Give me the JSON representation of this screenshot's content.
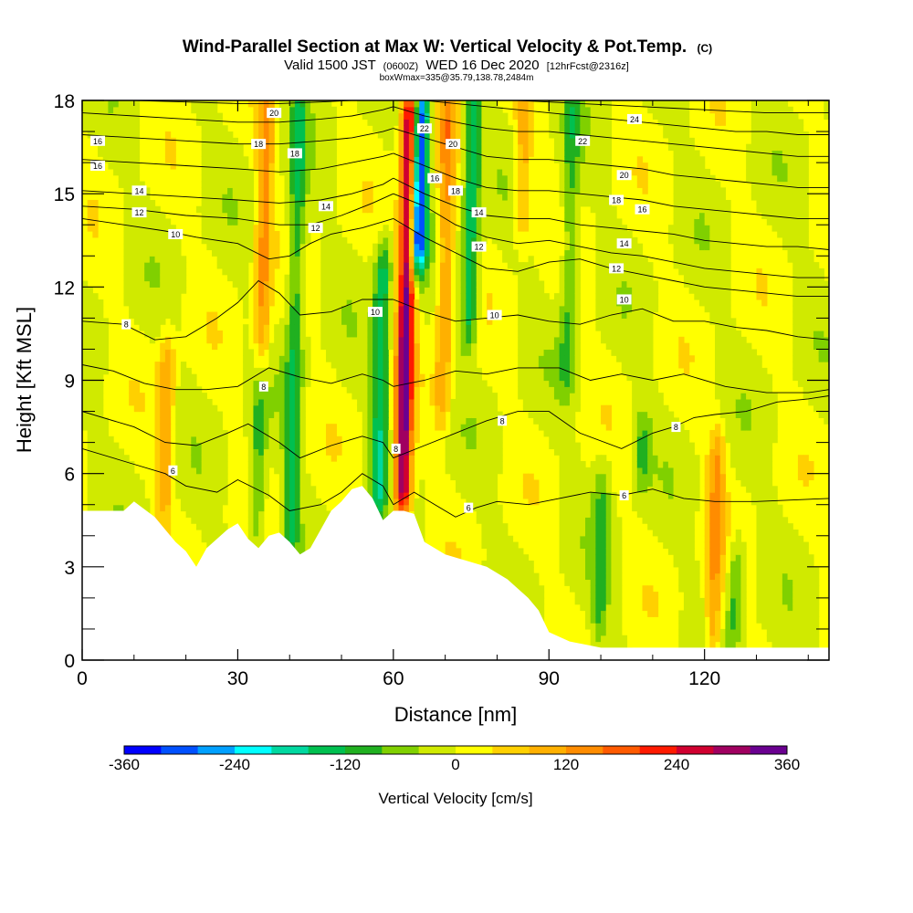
{
  "title": {
    "main": "Wind-Parallel Section at Max W: Vertical Velocity & Pot.Temp.",
    "main_tag": "(C)",
    "sub_a": "Valid 1500 JST",
    "sub_b": "(0600Z)",
    "sub_c": "WED 16 Dec 2020",
    "sub_d": "[12hrFcst@2316z]",
    "box": "boxWmax=335@35.79,138.78,2484m"
  },
  "chart_data": {
    "type": "heatmap",
    "xlabel": "Distance [nm]",
    "ylabel": "Height [Kft MSL]",
    "xlim": [
      0,
      144
    ],
    "ylim": [
      0,
      18
    ],
    "x_ticks": [
      0,
      30,
      60,
      90,
      120
    ],
    "y_ticks": [
      0,
      3,
      6,
      9,
      12,
      15,
      18
    ],
    "x_tick_labels": [
      "0",
      "30",
      "60",
      "90",
      "120"
    ],
    "y_tick_labels": [
      "0",
      "3",
      "6",
      "9",
      "12",
      "15",
      "18"
    ],
    "colorbar": {
      "title": "Vertical Velocity [cm/s]",
      "range": [
        -360,
        360
      ],
      "tick_values": [
        -360,
        -240,
        -120,
        0,
        120,
        240,
        360
      ],
      "tick_labels": [
        "-360",
        "-240",
        "-120",
        "0",
        "120",
        "240",
        "360"
      ],
      "colors": [
        "#0000ff",
        "#0050ff",
        "#00a0ff",
        "#00ffff",
        "#00d8a0",
        "#00c050",
        "#20b020",
        "#80d000",
        "#d0ea00",
        "#ffff00",
        "#ffd000",
        "#ffb000",
        "#ff8c00",
        "#ff5a00",
        "#ff1a00",
        "#d00030",
        "#a00060",
        "#6a0090"
      ]
    },
    "terrain": {
      "x": [
        0,
        8,
        10,
        14,
        16,
        18,
        20,
        22,
        24,
        28,
        30,
        32,
        34,
        36,
        38,
        40,
        42,
        44,
        46,
        48,
        50,
        52,
        54,
        56,
        58,
        60,
        62,
        64,
        66,
        70,
        74,
        78,
        82,
        86,
        88,
        90,
        94,
        100,
        110,
        120,
        130,
        144
      ],
      "height": [
        4.8,
        4.8,
        5.1,
        4.6,
        4.2,
        3.8,
        3.5,
        3.0,
        3.6,
        4.2,
        4.4,
        3.9,
        3.6,
        4.0,
        4.1,
        3.8,
        3.4,
        3.6,
        4.2,
        4.8,
        5.1,
        5.5,
        5.6,
        5.2,
        4.5,
        4.8,
        4.8,
        4.7,
        3.8,
        3.4,
        3.2,
        3.0,
        2.6,
        2.0,
        1.6,
        0.9,
        0.6,
        0.4,
        0.4,
        0.4,
        0.4,
        0.4
      ]
    },
    "w_features": [
      {
        "x": 62.5,
        "z_min": 5.0,
        "z_max": 18.0,
        "sign": "updraft",
        "w_max": 335
      },
      {
        "x": 65.0,
        "z_min": 13.0,
        "z_max": 18.0,
        "sign": "downdraft",
        "w_min": -360
      },
      {
        "x": 57.5,
        "z_min": 5.0,
        "z_max": 13.0,
        "sign": "downdraft",
        "w_min": -150
      },
      {
        "x": 75.0,
        "z_min": 10.5,
        "z_max": 18.0,
        "sign": "downdraft",
        "w_min": -150
      },
      {
        "x": 41.0,
        "z_min": 3.5,
        "z_max": 18.0,
        "sign": "downdraft",
        "w_min": -120
      },
      {
        "x": 34.0,
        "z_min": 4.0,
        "z_max": 9.5,
        "sign": "downdraft",
        "w_min": -100
      },
      {
        "x": 94.0,
        "z_min": 9.0,
        "z_max": 18.0,
        "sign": "downdraft",
        "w_min": -90
      },
      {
        "x": 100.0,
        "z_min": 1.0,
        "z_max": 6.0,
        "sign": "downdraft",
        "w_min": -80
      },
      {
        "x": 108.0,
        "z_min": 6.0,
        "z_max": 7.5,
        "sign": "downdraft",
        "w_min": -90
      },
      {
        "x": 126.0,
        "z_min": 1.0,
        "z_max": 3.5,
        "sign": "downdraft",
        "w_min": -100
      },
      {
        "x": 35.0,
        "z_min": 9.0,
        "z_max": 18.0,
        "sign": "updraft",
        "w_min": 130
      },
      {
        "x": 16.0,
        "z_min": 5.0,
        "z_max": 10.0,
        "sign": "updraft",
        "w_min": 110
      },
      {
        "x": 70.0,
        "z_min": 8.0,
        "z_max": 18.0,
        "sign": "updraft",
        "w_min": 120
      },
      {
        "x": 85.0,
        "z_min": 14.0,
        "z_max": 18.0,
        "sign": "updraft",
        "w_min": 100
      },
      {
        "x": 122.0,
        "z_min": 0.5,
        "z_max": 7.0,
        "sign": "updraft",
        "w_min": 120
      }
    ],
    "theta_contours": [
      {
        "label": "6",
        "x": [
          0,
          10,
          16,
          20,
          26,
          30,
          36,
          40,
          46,
          50,
          54,
          58,
          60
        ],
        "y": [
          6.8,
          6.3,
          6.0,
          5.6,
          5.4,
          5.8,
          5.3,
          4.8,
          5.0,
          5.4,
          6.0,
          5.6,
          5.0
        ]
      },
      {
        "label": "6",
        "x": [
          60,
          64,
          68,
          72,
          76,
          80,
          86,
          92,
          98,
          104,
          110,
          116,
          122,
          130,
          144
        ],
        "y": [
          5.0,
          5.4,
          5.0,
          4.6,
          4.9,
          5.1,
          5.0,
          5.2,
          5.4,
          5.3,
          5.5,
          5.2,
          5.1,
          5.1,
          5.2
        ]
      },
      {
        "label": "",
        "x": [
          0,
          10,
          16,
          22,
          28,
          32,
          38,
          42,
          48,
          54,
          58,
          60
        ],
        "y": [
          8.0,
          7.5,
          7.0,
          6.9,
          7.3,
          7.6,
          7.0,
          6.5,
          6.9,
          7.2,
          7.0,
          6.5
        ]
      },
      {
        "label": "8",
        "x": [
          60,
          66,
          72,
          78,
          84,
          90,
          96,
          104,
          110,
          114,
          118,
          122,
          128,
          134,
          140,
          144
        ],
        "y": [
          6.5,
          6.9,
          7.3,
          7.7,
          8.0,
          8.0,
          7.3,
          6.8,
          7.3,
          7.5,
          7.8,
          7.9,
          8.0,
          8.3,
          8.4,
          8.5
        ]
      },
      {
        "label": "8",
        "x": [
          0,
          6,
          12,
          18,
          24,
          30,
          36,
          42,
          48,
          54,
          58,
          60
        ],
        "y": [
          9.5,
          9.3,
          8.9,
          8.7,
          8.7,
          8.8,
          9.4,
          9.1,
          8.9,
          9.2,
          9.0,
          8.8
        ]
      },
      {
        "label": "",
        "x": [
          60,
          66,
          72,
          78,
          84,
          92,
          98,
          104,
          110,
          116,
          124,
          132,
          140,
          144
        ],
        "y": [
          8.8,
          9.0,
          9.3,
          9.2,
          9.4,
          9.4,
          9.0,
          9.2,
          9.0,
          9.2,
          8.8,
          8.6,
          8.6,
          8.7
        ]
      },
      {
        "label": "8",
        "x": [
          0,
          8,
          14,
          20,
          26,
          30,
          34,
          38,
          42,
          48,
          54,
          60
        ],
        "y": [
          10.9,
          10.8,
          10.3,
          10.4,
          11.0,
          11.5,
          12.2,
          11.8,
          11.1,
          11.2,
          11.6,
          11.6
        ]
      },
      {
        "label": "10",
        "x": [
          60,
          66,
          72,
          78,
          84,
          90,
          96,
          102,
          108,
          114,
          120,
          126,
          132,
          138,
          144
        ],
        "y": [
          11.6,
          11.2,
          10.9,
          11.0,
          11.1,
          10.9,
          10.8,
          11.1,
          11.3,
          10.9,
          10.9,
          10.7,
          10.6,
          10.4,
          10.3
        ]
      },
      {
        "label": "10",
        "x": [
          0,
          8,
          16,
          22,
          30,
          36,
          40,
          44,
          48,
          54,
          60
        ],
        "y": [
          14.2,
          14.0,
          13.8,
          13.6,
          13.4,
          12.9,
          13.0,
          13.4,
          13.7,
          13.9,
          14.2
        ]
      },
      {
        "label": "12",
        "x": [
          60,
          66,
          72,
          78,
          84,
          90,
          96,
          102,
          108,
          114,
          120,
          126,
          132,
          138,
          144
        ],
        "y": [
          14.2,
          13.6,
          13.1,
          12.6,
          12.5,
          12.8,
          12.9,
          12.6,
          12.4,
          12.2,
          12.0,
          11.9,
          11.8,
          11.7,
          11.7
        ]
      },
      {
        "label": "12",
        "x": [
          0,
          10,
          20,
          30,
          38,
          44,
          50,
          56,
          60
        ],
        "y": [
          14.6,
          14.5,
          14.3,
          14.2,
          14.0,
          14.0,
          14.3,
          14.7,
          15.0
        ]
      },
      {
        "label": "14",
        "x": [
          60,
          66,
          72,
          78,
          84,
          90,
          96,
          102,
          108,
          114,
          120,
          126,
          132,
          138,
          144
        ],
        "y": [
          15.0,
          14.6,
          14.0,
          13.6,
          13.4,
          13.5,
          13.3,
          13.1,
          13.0,
          12.8,
          12.6,
          12.5,
          12.4,
          12.3,
          12.3
        ]
      },
      {
        "label": "14",
        "x": [
          0,
          10,
          20,
          30,
          38,
          46,
          52,
          58,
          60
        ],
        "y": [
          15.1,
          15.0,
          14.9,
          14.8,
          14.7,
          14.8,
          15.0,
          15.3,
          15.5
        ]
      },
      {
        "label": "",
        "x": [
          60,
          66,
          72,
          78,
          84,
          90,
          96,
          102,
          108,
          114,
          120,
          126,
          132,
          138,
          144
        ],
        "y": [
          15.5,
          15.0,
          14.6,
          14.3,
          14.2,
          14.2,
          14.0,
          13.9,
          13.8,
          13.7,
          13.5,
          13.4,
          13.3,
          13.3,
          13.2
        ]
      },
      {
        "label": "16",
        "x": [
          0,
          10,
          20,
          30,
          38,
          46,
          52,
          58,
          60
        ],
        "y": [
          16.1,
          16.0,
          15.9,
          15.8,
          15.7,
          15.8,
          16.0,
          16.2,
          16.3
        ]
      },
      {
        "label": "16",
        "x": [
          60,
          66,
          72,
          78,
          84,
          90,
          96,
          102,
          108,
          114,
          120,
          126,
          132,
          138,
          144
        ],
        "y": [
          16.3,
          15.9,
          15.5,
          15.2,
          15.1,
          15.1,
          15.0,
          14.9,
          14.8,
          14.6,
          14.5,
          14.4,
          14.3,
          14.2,
          14.2
        ]
      },
      {
        "label": "16",
        "x": [
          0,
          10,
          20,
          30,
          38,
          46,
          52,
          58,
          60
        ],
        "y": [
          16.9,
          16.8,
          16.7,
          16.6,
          16.6,
          16.7,
          16.8,
          17.0,
          17.1
        ]
      },
      {
        "label": "18",
        "x": [
          60,
          66,
          72,
          78,
          84,
          90,
          96,
          102,
          108,
          114,
          120,
          126,
          132,
          138,
          144
        ],
        "y": [
          17.1,
          16.8,
          16.5,
          16.2,
          16.1,
          16.1,
          16.0,
          15.9,
          15.8,
          15.6,
          15.5,
          15.4,
          15.3,
          15.2,
          15.2
        ]
      },
      {
        "label": "18",
        "x": [
          0,
          10,
          20,
          30,
          38,
          46,
          52,
          58,
          60
        ],
        "y": [
          17.6,
          17.5,
          17.4,
          17.3,
          17.3,
          17.4,
          17.5,
          17.7,
          17.8
        ]
      },
      {
        "label": "20",
        "x": [
          60,
          66,
          72,
          78,
          84,
          90,
          96,
          102,
          108,
          114,
          120,
          126,
          132,
          138,
          144
        ],
        "y": [
          17.8,
          17.5,
          17.3,
          17.1,
          17.0,
          17.0,
          16.9,
          16.8,
          16.7,
          16.6,
          16.5,
          16.4,
          16.3,
          16.2,
          16.2
        ]
      },
      {
        "label": "20",
        "x": [
          10,
          20,
          30,
          38,
          46,
          52,
          58,
          60
        ],
        "y": [
          18.0,
          17.95,
          17.9,
          17.9,
          17.95,
          18.0,
          18.0,
          18.0
        ]
      },
      {
        "label": "22",
        "x": [
          66,
          72,
          78,
          84,
          90,
          96,
          102,
          108,
          114,
          120,
          126,
          132,
          138,
          144
        ],
        "y": [
          18.0,
          17.9,
          17.8,
          17.7,
          17.6,
          17.5,
          17.4,
          17.3,
          17.2,
          17.1,
          17.0,
          17.0,
          16.9,
          16.9
        ]
      },
      {
        "label": "24",
        "x": [
          84,
          90,
          96,
          102,
          108,
          114,
          120,
          126,
          132,
          138,
          144
        ],
        "y": [
          18.0,
          17.95,
          17.9,
          17.85,
          17.8,
          17.75,
          17.7,
          17.65,
          17.6,
          17.6,
          17.6
        ]
      }
    ],
    "contour_labels": [
      {
        "text": "20",
        "x": 37,
        "y": 17.6
      },
      {
        "text": "16",
        "x": 3,
        "y": 16.7
      },
      {
        "text": "16",
        "x": 3,
        "y": 15.9
      },
      {
        "text": "18",
        "x": 34,
        "y": 16.6
      },
      {
        "text": "18",
        "x": 41,
        "y": 16.3
      },
      {
        "text": "14",
        "x": 11,
        "y": 15.1
      },
      {
        "text": "12",
        "x": 11,
        "y": 14.4
      },
      {
        "text": "14",
        "x": 47,
        "y": 14.6
      },
      {
        "text": "12",
        "x": 45,
        "y": 13.9
      },
      {
        "text": "10",
        "x": 18,
        "y": 13.7
      },
      {
        "text": "8",
        "x": 8.5,
        "y": 10.8
      },
      {
        "text": "10",
        "x": 56.5,
        "y": 11.2
      },
      {
        "text": "8",
        "x": 35,
        "y": 8.8
      },
      {
        "text": "8",
        "x": 60.5,
        "y": 6.8
      },
      {
        "text": "6",
        "x": 17.5,
        "y": 6.1
      },
      {
        "text": "6",
        "x": 74.5,
        "y": 4.9
      },
      {
        "text": "22",
        "x": 66,
        "y": 17.1
      },
      {
        "text": "20",
        "x": 71.5,
        "y": 16.6
      },
      {
        "text": "18",
        "x": 72,
        "y": 15.1
      },
      {
        "text": "16",
        "x": 68,
        "y": 15.5
      },
      {
        "text": "14",
        "x": 76.5,
        "y": 14.4
      },
      {
        "text": "12",
        "x": 76.5,
        "y": 13.3
      },
      {
        "text": "10",
        "x": 79.5,
        "y": 11.1
      },
      {
        "text": "8",
        "x": 81,
        "y": 7.7
      },
      {
        "text": "22",
        "x": 96.5,
        "y": 16.7
      },
      {
        "text": "24",
        "x": 106.5,
        "y": 17.4
      },
      {
        "text": "20",
        "x": 104.5,
        "y": 15.6
      },
      {
        "text": "18",
        "x": 103,
        "y": 14.8
      },
      {
        "text": "16",
        "x": 108,
        "y": 14.5
      },
      {
        "text": "14",
        "x": 104.5,
        "y": 13.4
      },
      {
        "text": "12",
        "x": 103,
        "y": 12.6
      },
      {
        "text": "10",
        "x": 104.5,
        "y": 11.6
      },
      {
        "text": "8",
        "x": 114.5,
        "y": 7.5
      },
      {
        "text": "6",
        "x": 104.5,
        "y": 5.3
      }
    ]
  }
}
